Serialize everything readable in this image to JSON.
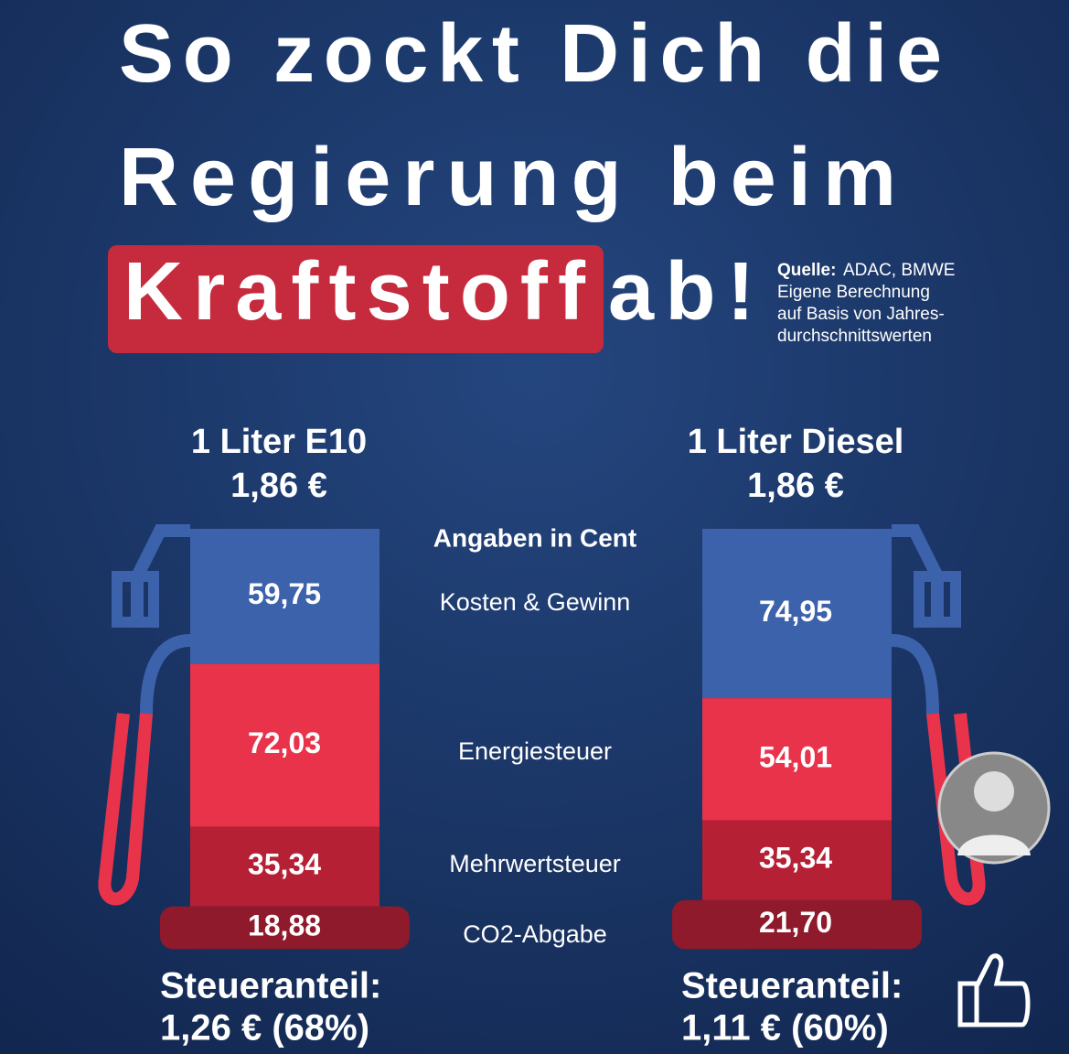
{
  "header": {
    "title_lines": [
      "So zockt Dich die",
      "Regierung beim"
    ],
    "highlight": "Kraftstoff",
    "title_end": "ab!",
    "source_label": "Quelle:",
    "source_text": "ADAC, BMWE",
    "source_note": [
      "Eigene Berechnung",
      "auf Basis von Jahres-",
      "durchschnittswerten"
    ]
  },
  "unit_note": "Angaben in Cent",
  "components": [
    "Kosten & Gewinn",
    "Energiesteuer",
    "Mehrwertsteuer",
    "CO2-Abgabe"
  ],
  "pumps": [
    {
      "title": "1 Liter E10",
      "price": "1,86 €",
      "values": [
        59.75,
        72.03,
        35.34,
        18.88
      ],
      "value_labels": [
        "59,75",
        "72,03",
        "35,34",
        "18,88"
      ],
      "tax_title": "Steueranteil:",
      "tax": "1,26 € (68%)"
    },
    {
      "title": "1 Liter Diesel",
      "price": "1,86 €",
      "values": [
        74.95,
        54.01,
        35.34,
        21.7
      ],
      "value_labels": [
        "74,95",
        "54,01",
        "35,34",
        "21,70"
      ],
      "tax_title": "Steueranteil:",
      "tax": "1,11 € (60%)"
    }
  ]
}
